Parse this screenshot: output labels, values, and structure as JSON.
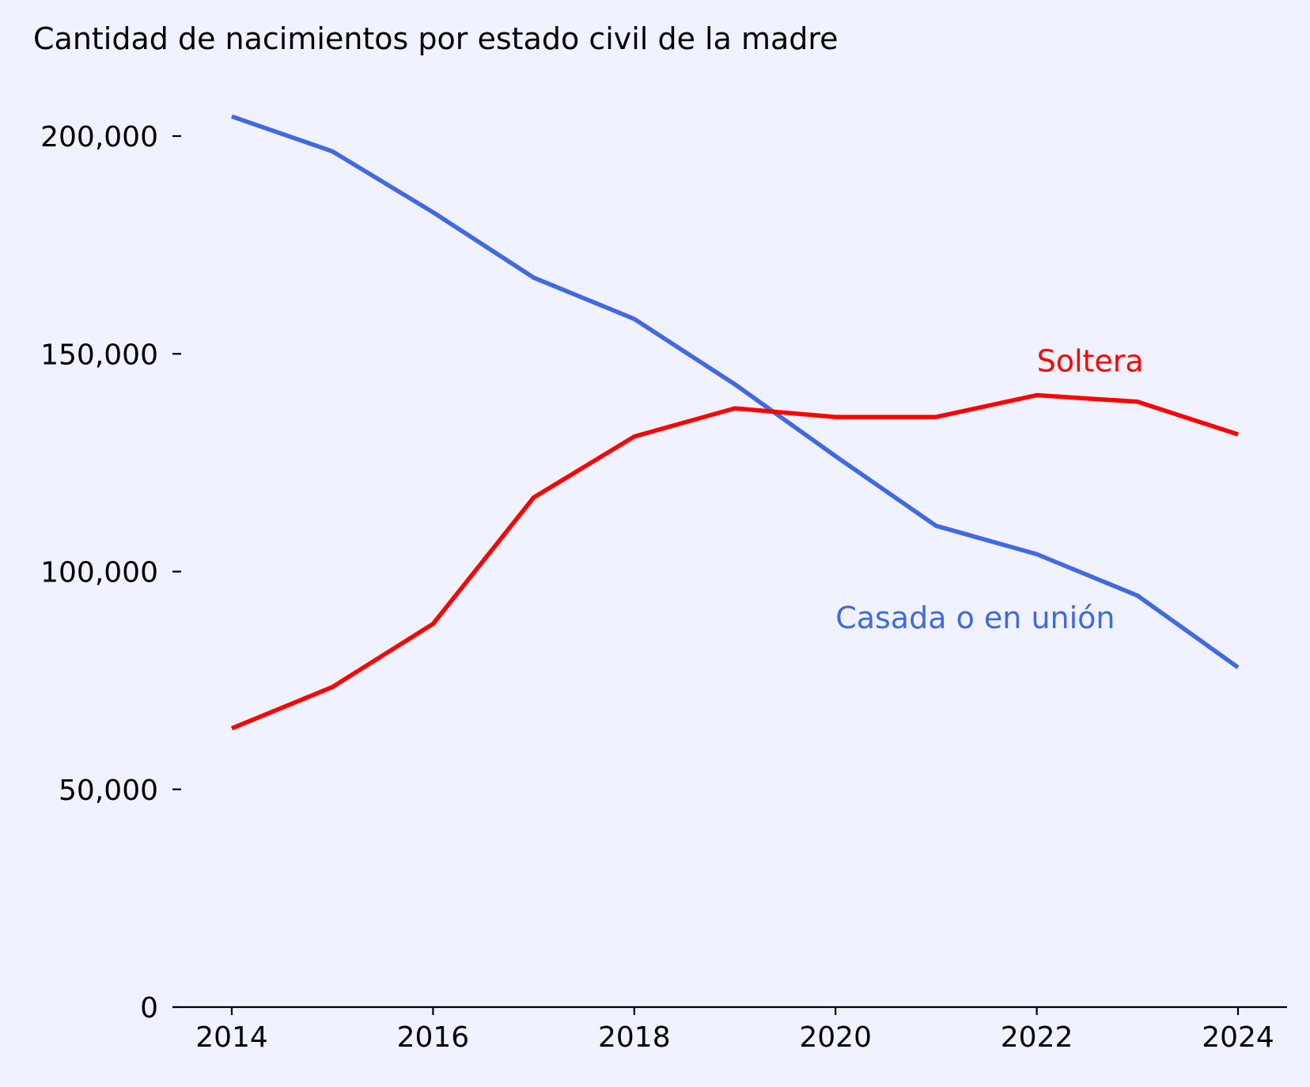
{
  "chart_data": {
    "type": "line",
    "title": "Cantidad de nacimientos por estado civil de la madre",
    "xlabel": "",
    "ylabel": "",
    "x": [
      2014,
      2015,
      2016,
      2017,
      2018,
      2019,
      2020,
      2021,
      2022,
      2023,
      2024
    ],
    "xlim": [
      2013.4,
      2024.5
    ],
    "ylim": [
      0,
      210000
    ],
    "x_ticks": [
      2014,
      2016,
      2018,
      2020,
      2022,
      2024
    ],
    "y_ticks": [
      0,
      50000,
      100000,
      150000,
      200000
    ],
    "y_tick_labels": [
      "0",
      "50,000",
      "100,000",
      "150,000",
      "200,000"
    ],
    "grid": false,
    "legend": "none (direct labels)",
    "series": [
      {
        "name": "Casada o en unión",
        "color": "#4169e1",
        "values": [
          204500,
          196500,
          182500,
          167500,
          158000,
          143000,
          126500,
          110500,
          104000,
          94500,
          78000
        ],
        "label_anchor": {
          "x": 2020,
          "y": 87000
        }
      },
      {
        "name": "Soltera",
        "color": "#ff0000",
        "values": [
          64000,
          73500,
          88000,
          117000,
          131000,
          137500,
          135500,
          135500,
          140500,
          139000,
          131500
        ],
        "label_anchor": {
          "x": 2022,
          "y": 146000
        }
      }
    ]
  }
}
